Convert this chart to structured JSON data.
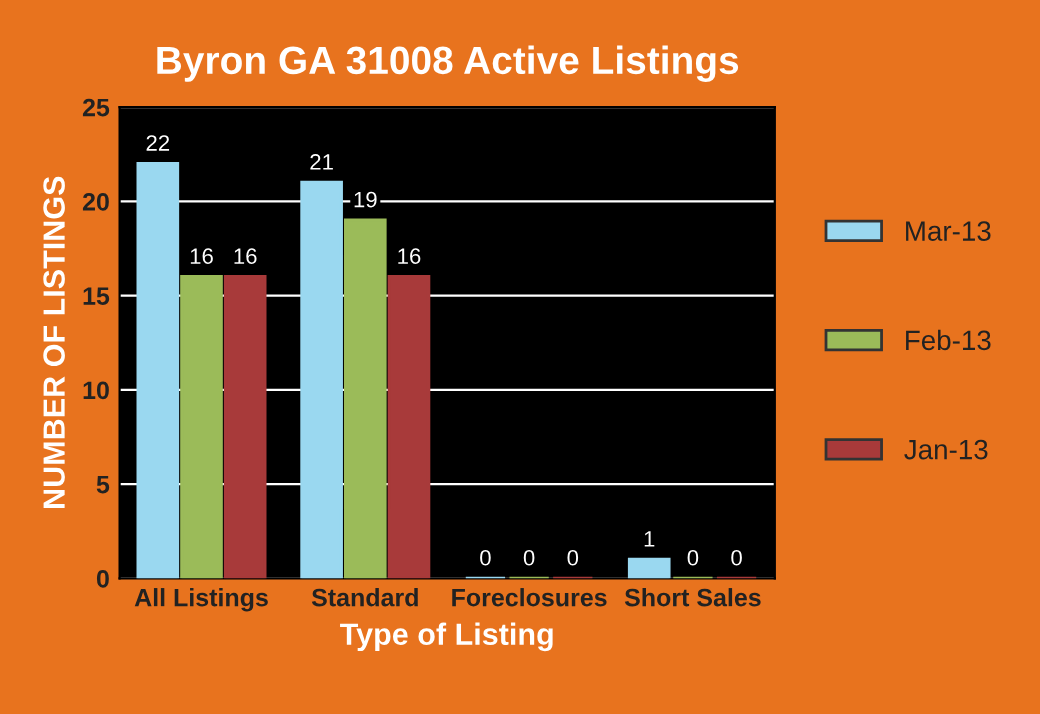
{
  "chart_data": {
    "type": "bar",
    "title": "Byron GA 31008 Active Listings",
    "xlabel": "Type of Listing",
    "ylabel": "NUMBER OF LISTINGS",
    "categories": [
      "All Listings",
      "Standard",
      "Foreclosures",
      "Short Sales"
    ],
    "series": [
      {
        "name": "Mar-13",
        "color": "#9ad8f0",
        "values": [
          22,
          21,
          0,
          1
        ]
      },
      {
        "name": "Feb-13",
        "color": "#9bbb59",
        "values": [
          16,
          19,
          0,
          0
        ]
      },
      {
        "name": "Jan-13",
        "color": "#a83a3a",
        "values": [
          16,
          16,
          0,
          0
        ]
      }
    ],
    "ylim": [
      0,
      25
    ],
    "yticks": [
      0,
      5,
      10,
      15,
      20,
      25
    ],
    "grid": "y",
    "legend": "right",
    "data_labels": true
  }
}
